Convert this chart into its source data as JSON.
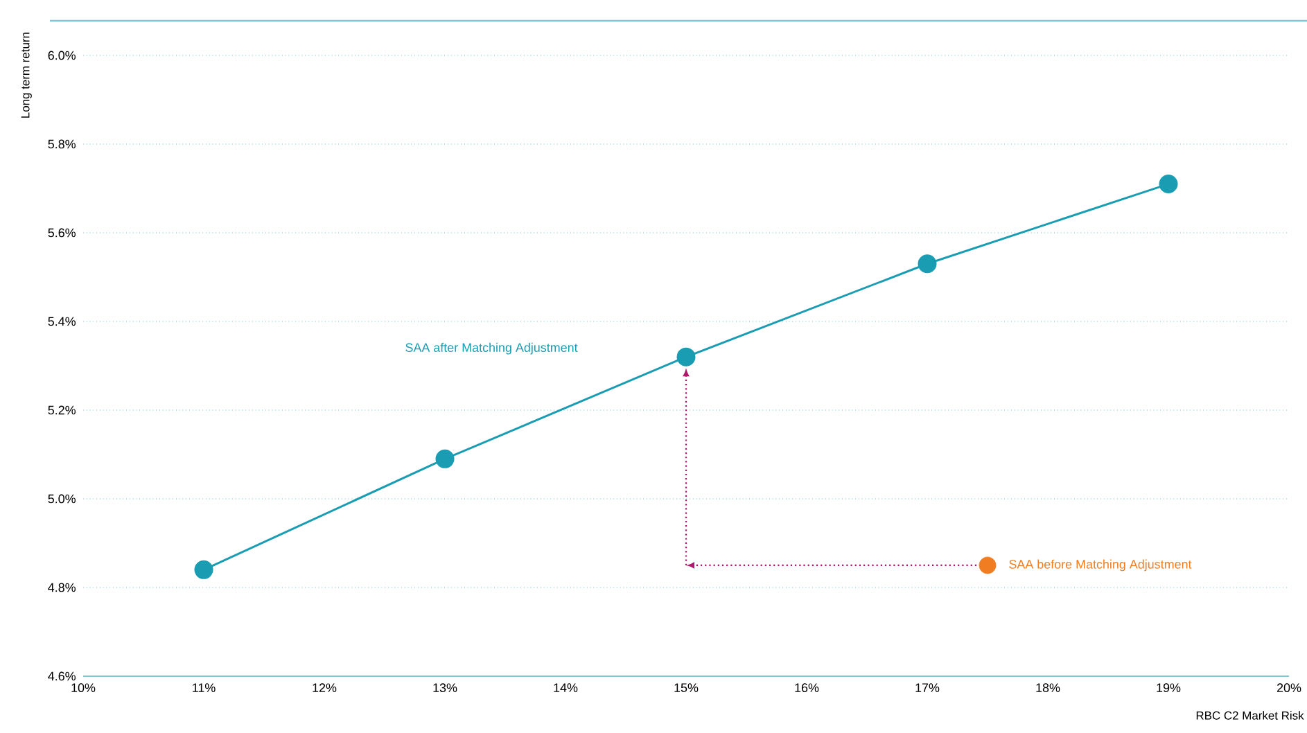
{
  "chart_data": {
    "type": "line",
    "xlabel": "RBC C2 Market Risk",
    "ylabel": "Long term return",
    "xlim": [
      10,
      20
    ],
    "ylim": [
      4.6,
      6.0
    ],
    "xticks": [
      {
        "value": 10,
        "label": "10%"
      },
      {
        "value": 11,
        "label": "11%"
      },
      {
        "value": 12,
        "label": "12%"
      },
      {
        "value": 13,
        "label": "13%"
      },
      {
        "value": 14,
        "label": "14%"
      },
      {
        "value": 15,
        "label": "15%"
      },
      {
        "value": 16,
        "label": "16%"
      },
      {
        "value": 17,
        "label": "17%"
      },
      {
        "value": 18,
        "label": "18%"
      },
      {
        "value": 19,
        "label": "19%"
      },
      {
        "value": 20,
        "label": "20%"
      }
    ],
    "yticks": [
      {
        "value": 4.6,
        "label": "4.6%"
      },
      {
        "value": 4.8,
        "label": "4.8%"
      },
      {
        "value": 5.0,
        "label": "5.0%"
      },
      {
        "value": 5.2,
        "label": "5.2%"
      },
      {
        "value": 5.4,
        "label": "5.4%"
      },
      {
        "value": 5.6,
        "label": "5.6%"
      },
      {
        "value": 5.8,
        "label": "5.8%"
      },
      {
        "value": 6.0,
        "label": "6.0%"
      }
    ],
    "grid": "y",
    "marker": "circle",
    "line_style": "solid",
    "series": [
      {
        "name": "SAA after Matching Adjustment",
        "color": "#1a9db3",
        "x": [
          11,
          13,
          15,
          17,
          19
        ],
        "values": [
          4.84,
          5.09,
          5.32,
          5.53,
          5.71
        ]
      },
      {
        "name": "SAA before Matching Adjustment",
        "type": "scatter",
        "color": "#f07d22",
        "x": [
          17.5
        ],
        "values": [
          4.85
        ]
      }
    ]
  }
}
